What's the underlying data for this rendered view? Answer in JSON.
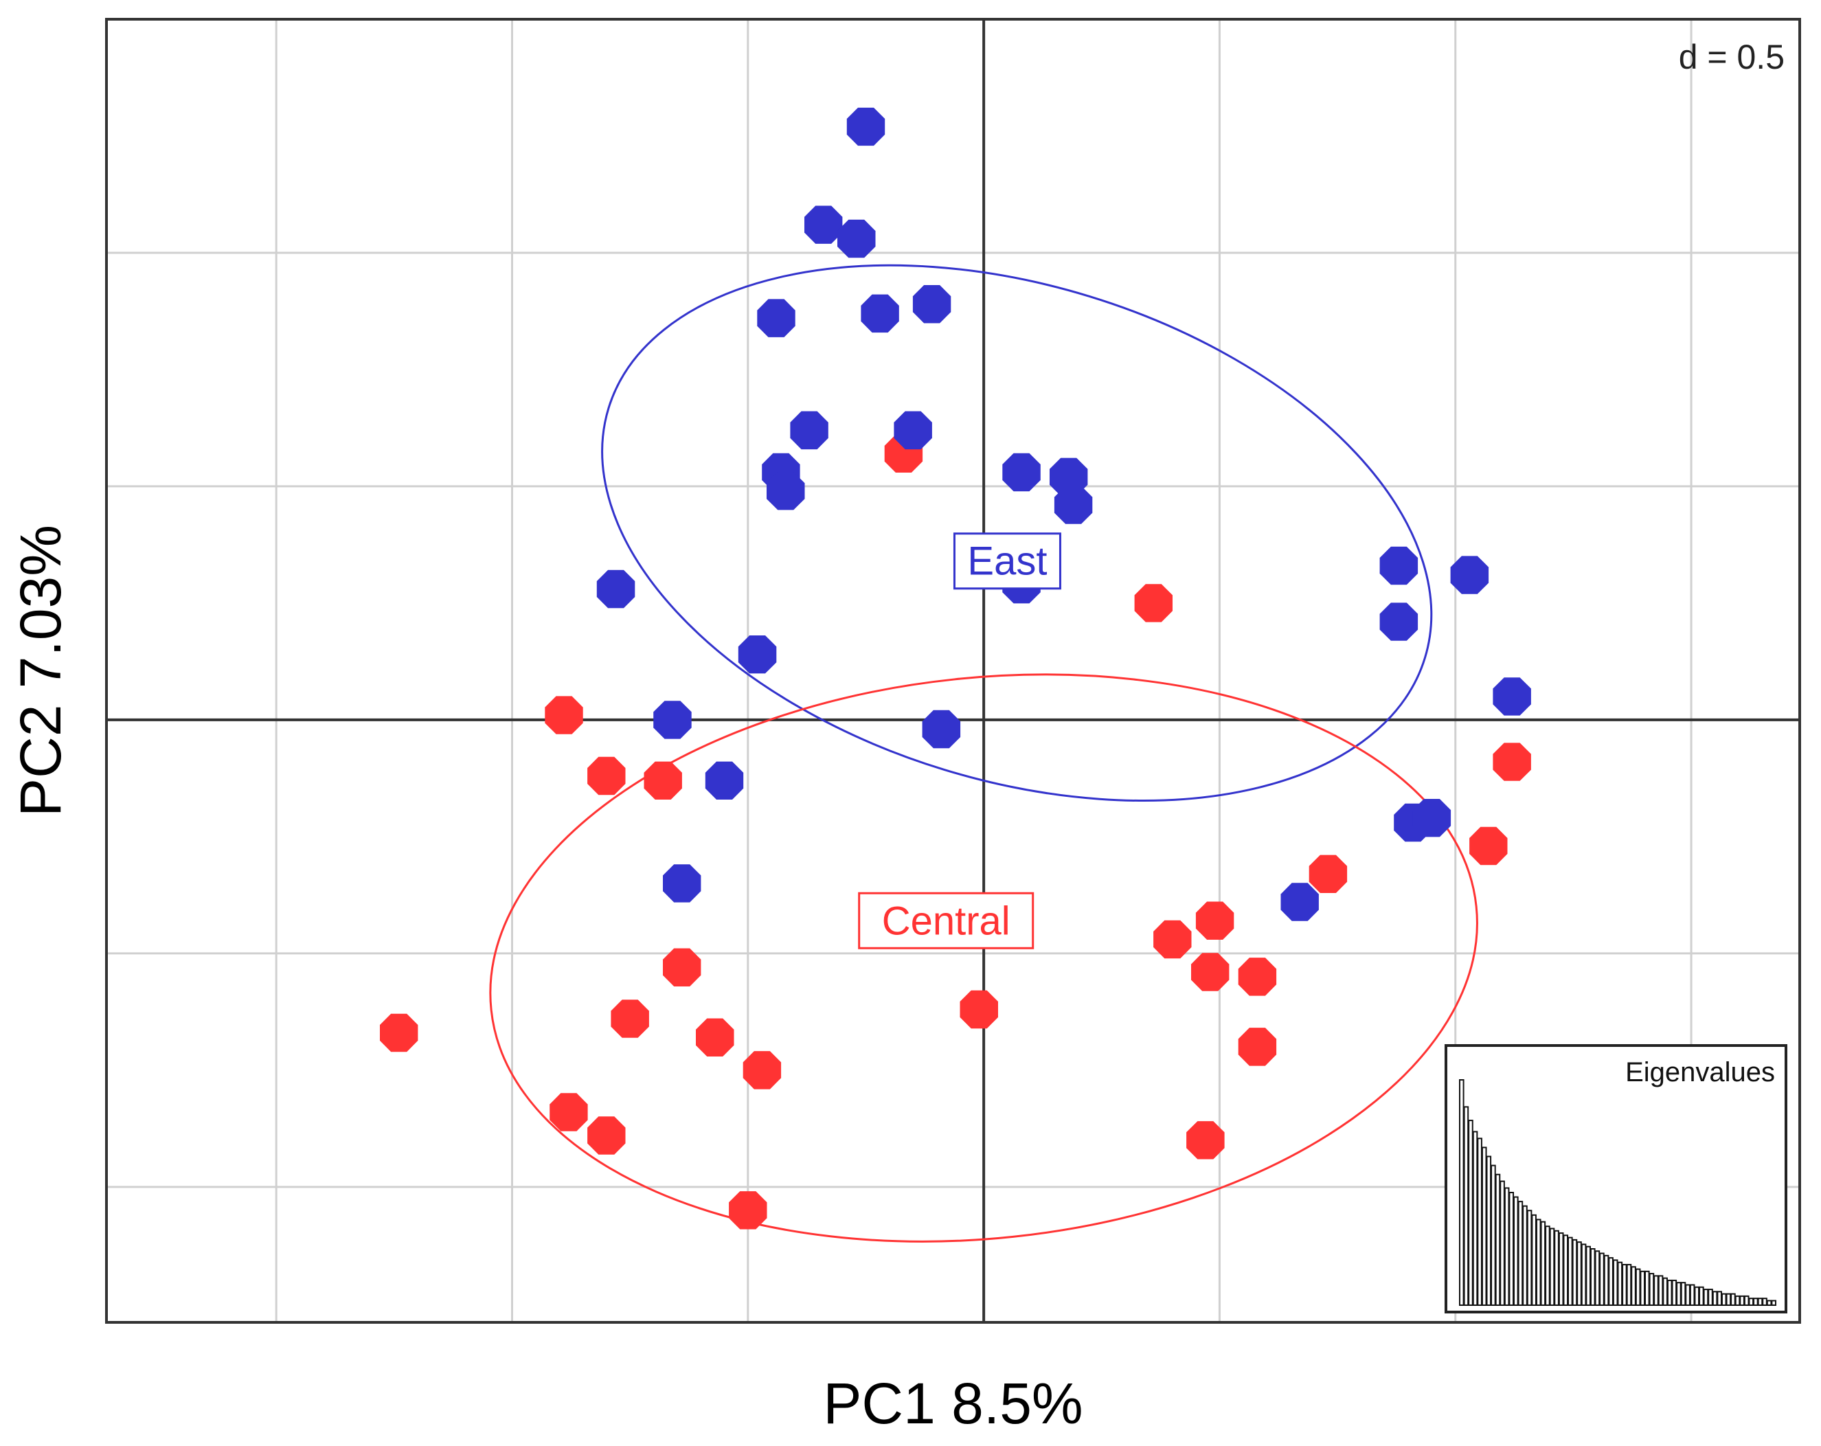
{
  "chart_data": {
    "type": "scatter",
    "title": "",
    "xlabel": "PC1 8.5%",
    "ylabel": "PC2 7.03%",
    "grid_spacing_label": "d = 0.5",
    "grid_step": 0.5,
    "xlim": [
      -1.86,
      1.73
    ],
    "ylim": [
      -1.29,
      1.5
    ],
    "grid": true,
    "colors": {
      "East": "#3333cc",
      "Central": "#ff3333"
    },
    "series": [
      {
        "name": "East",
        "points": [
          [
            -0.25,
            1.27
          ],
          [
            -0.34,
            1.06
          ],
          [
            -0.27,
            1.03
          ],
          [
            -0.22,
            0.87
          ],
          [
            -0.44,
            0.86
          ],
          [
            -0.11,
            0.89
          ],
          [
            -0.37,
            0.62
          ],
          [
            -0.15,
            0.62
          ],
          [
            -0.43,
            0.53
          ],
          [
            -0.42,
            0.49
          ],
          [
            0.08,
            0.53
          ],
          [
            0.18,
            0.52
          ],
          [
            0.19,
            0.46
          ],
          [
            0.08,
            0.29
          ],
          [
            -0.78,
            0.28
          ],
          [
            -0.48,
            0.14
          ],
          [
            0.88,
            0.33
          ],
          [
            1.03,
            0.31
          ],
          [
            0.88,
            0.21
          ],
          [
            1.12,
            0.05
          ],
          [
            -0.66,
            0.0
          ],
          [
            -0.09,
            -0.02
          ],
          [
            -0.55,
            -0.13
          ],
          [
            0.91,
            -0.22
          ],
          [
            0.95,
            -0.21
          ],
          [
            -0.64,
            -0.35
          ],
          [
            0.67,
            -0.39
          ]
        ]
      },
      {
        "name": "Central",
        "points": [
          [
            -0.17,
            0.57
          ],
          [
            0.36,
            0.25
          ],
          [
            -0.89,
            0.01
          ],
          [
            -0.8,
            -0.12
          ],
          [
            -0.68,
            -0.13
          ],
          [
            1.12,
            -0.09
          ],
          [
            1.07,
            -0.27
          ],
          [
            0.73,
            -0.33
          ],
          [
            0.49,
            -0.43
          ],
          [
            0.4,
            -0.47
          ],
          [
            0.48,
            -0.54
          ],
          [
            0.58,
            -0.55
          ],
          [
            -0.64,
            -0.53
          ],
          [
            -0.75,
            -0.64
          ],
          [
            -0.57,
            -0.68
          ],
          [
            -1.24,
            -0.67
          ],
          [
            -0.01,
            -0.62
          ],
          [
            -0.47,
            -0.75
          ],
          [
            0.58,
            -0.7
          ],
          [
            -0.88,
            -0.84
          ],
          [
            -0.8,
            -0.89
          ],
          [
            0.47,
            -0.9
          ],
          [
            -0.5,
            -1.05
          ]
        ]
      }
    ],
    "ellipses": [
      {
        "name": "East",
        "center": [
          0.07,
          0.4
        ],
        "rx": 0.905,
        "ry": 0.53,
        "rotation_deg": 17
      },
      {
        "name": "Central",
        "center": [
          0.0,
          -0.51
        ],
        "rx": 1.05,
        "ry": 0.6,
        "rotation_deg": -6
      }
    ],
    "group_labels": [
      {
        "name": "East",
        "text": "East",
        "at": [
          0.05,
          0.34
        ]
      },
      {
        "name": "Central",
        "text": "Central",
        "at": [
          -0.08,
          -0.43
        ]
      }
    ],
    "inset": {
      "title": "Eigenvalues",
      "values": [
        1.0,
        0.88,
        0.82,
        0.77,
        0.74,
        0.7,
        0.66,
        0.62,
        0.58,
        0.55,
        0.52,
        0.5,
        0.48,
        0.46,
        0.44,
        0.42,
        0.4,
        0.38,
        0.37,
        0.35,
        0.34,
        0.33,
        0.32,
        0.31,
        0.3,
        0.29,
        0.28,
        0.27,
        0.26,
        0.25,
        0.24,
        0.23,
        0.22,
        0.21,
        0.2,
        0.19,
        0.18,
        0.18,
        0.17,
        0.16,
        0.15,
        0.15,
        0.14,
        0.13,
        0.13,
        0.12,
        0.11,
        0.11,
        0.1,
        0.1,
        0.09,
        0.09,
        0.08,
        0.08,
        0.07,
        0.07,
        0.06,
        0.06,
        0.05,
        0.05,
        0.05,
        0.04,
        0.04,
        0.04,
        0.03,
        0.03,
        0.03,
        0.03,
        0.02,
        0.02
      ]
    }
  }
}
